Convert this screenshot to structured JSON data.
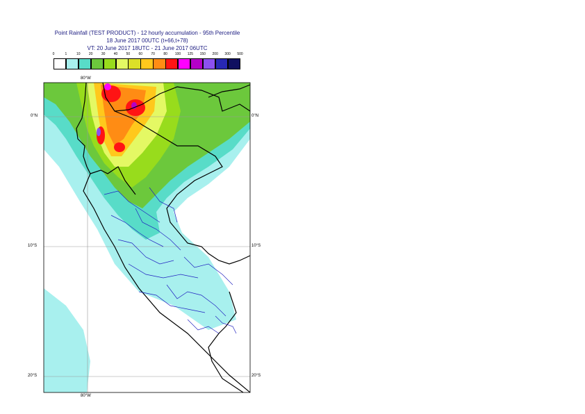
{
  "header": {
    "line1": "Point Rainfall (TEST PRODUCT) - 12 hourly accumulation - 95th Percentile",
    "line2": "18 June 2017 00UTC (t+66,t+78)",
    "line3": "VT: 20 June 2017 18UTC - 21 June 2017 06UTC"
  },
  "legend": {
    "ticks": [
      "0",
      "1",
      "10",
      "20",
      "30",
      "40",
      "50",
      "60",
      "70",
      "80",
      "100",
      "125",
      "150",
      "200",
      "300",
      "500"
    ],
    "colors": [
      "#ffffff",
      "#a8f0ee",
      "#58dcc8",
      "#6cc83c",
      "#98dc1c",
      "#e4f864",
      "#dce028",
      "#ffc81c",
      "#ff8c14",
      "#ff1414",
      "#ff00ff",
      "#b400c8",
      "#8c50f0",
      "#2828b4",
      "#101060"
    ]
  },
  "map": {
    "lat_labels": [
      "0°N",
      "10°S",
      "20°S"
    ],
    "lon_label_top": "80°W",
    "lon_label_bottom": "80°W"
  }
}
